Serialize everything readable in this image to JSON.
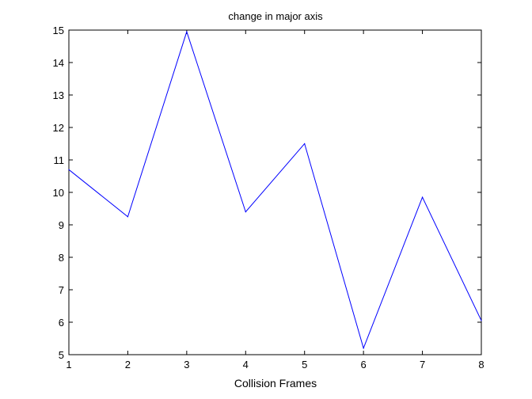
{
  "chart_data": {
    "type": "line",
    "title": "change in major axis",
    "xlabel": "Collision Frames",
    "ylabel": "",
    "xlim": [
      1,
      8
    ],
    "ylim": [
      5,
      15
    ],
    "xticks": [
      1,
      2,
      3,
      4,
      5,
      6,
      7,
      8
    ],
    "yticks": [
      5,
      6,
      7,
      8,
      9,
      10,
      11,
      12,
      13,
      14,
      15
    ],
    "grid": false,
    "legend": "none",
    "series": [
      {
        "color": "#0000ff",
        "x": [
          1,
          2,
          3,
          4,
          5,
          6,
          7,
          8
        ],
        "y": [
          10.7,
          9.25,
          14.95,
          9.4,
          11.5,
          5.2,
          9.85,
          6.05
        ]
      }
    ]
  }
}
